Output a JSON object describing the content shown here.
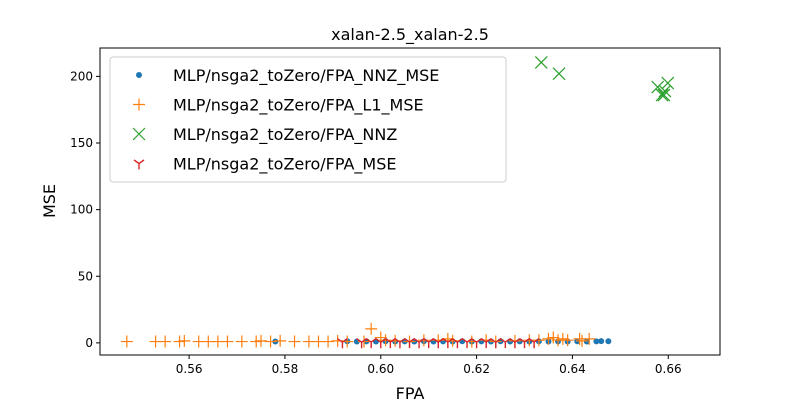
{
  "chart_data": {
    "type": "scatter",
    "title": "xalan-2.5_xalan-2.5",
    "xlabel": "FPA",
    "ylabel": "MSE",
    "xlim": [
      0.5414,
      0.6708
    ],
    "ylim": [
      -9.1,
      221.3
    ],
    "xticks": [
      {
        "value": 0.56,
        "label": "0.56"
      },
      {
        "value": 0.58,
        "label": "0.58"
      },
      {
        "value": 0.6,
        "label": "0.60"
      },
      {
        "value": 0.62,
        "label": "0.62"
      },
      {
        "value": 0.64,
        "label": "0.64"
      },
      {
        "value": 0.66,
        "label": "0.66"
      }
    ],
    "yticks": [
      {
        "value": 0,
        "label": "0"
      },
      {
        "value": 50,
        "label": "50"
      },
      {
        "value": 100,
        "label": "100"
      },
      {
        "value": 150,
        "label": "150"
      },
      {
        "value": 200,
        "label": "200"
      }
    ],
    "grid": false,
    "legend_position": "upper-left",
    "series": [
      {
        "name": "MLP/nsga2_toZero/FPA_NNZ_MSE",
        "marker": "dot",
        "color": "#1f77b4",
        "x": [
          0.578,
          0.593,
          0.595,
          0.597,
          0.599,
          0.601,
          0.603,
          0.605,
          0.607,
          0.609,
          0.611,
          0.613,
          0.615,
          0.617,
          0.619,
          0.621,
          0.623,
          0.625,
          0.627,
          0.629,
          0.631,
          0.633,
          0.635,
          0.637,
          0.639,
          0.641,
          0.643,
          0.645,
          0.646,
          0.6475
        ],
        "y": [
          1,
          1.2,
          1,
          1.1,
          1,
          1.2,
          1,
          1.1,
          1,
          1.2,
          1,
          1.1,
          1,
          1.2,
          1,
          1.1,
          1,
          1.2,
          1,
          1.1,
          1,
          1.2,
          1,
          1.1,
          1,
          1.2,
          1,
          1.1,
          1.3,
          1.2
        ]
      },
      {
        "name": "MLP/nsga2_toZero/FPA_L1_MSE",
        "marker": "plus",
        "color": "#ff7f0e",
        "x": [
          0.547,
          0.553,
          0.555,
          0.558,
          0.559,
          0.562,
          0.564,
          0.566,
          0.568,
          0.571,
          0.574,
          0.575,
          0.577,
          0.579,
          0.582,
          0.585,
          0.587,
          0.589,
          0.591,
          0.593,
          0.5965,
          0.598,
          0.6,
          0.601,
          0.603,
          0.606,
          0.609,
          0.612,
          0.614,
          0.615,
          0.619,
          0.622,
          0.624,
          0.628,
          0.631,
          0.633,
          0.635,
          0.636,
          0.637,
          0.638,
          0.639,
          0.6415,
          0.642,
          0.6435
        ],
        "y": [
          1,
          1,
          1,
          1,
          1.5,
          1,
          1,
          1,
          1,
          1,
          1,
          1.5,
          1,
          1.5,
          1,
          1,
          1,
          1,
          1.5,
          1,
          1,
          10.5,
          4,
          2,
          1.5,
          1,
          2,
          2,
          3,
          1.5,
          1,
          2,
          1,
          1.5,
          2,
          2,
          3,
          4,
          2,
          3,
          2,
          3,
          1.5,
          3
        ]
      },
      {
        "name": "MLP/nsga2_toZero/FPA_NNZ",
        "marker": "x",
        "color": "#2ca02c",
        "x": [
          0.6335,
          0.6372,
          0.6578,
          0.6587,
          0.6593,
          0.6591,
          0.6599
        ],
        "y": [
          210.5,
          202,
          192,
          186,
          189,
          186,
          195
        ]
      },
      {
        "name": "MLP/nsga2_toZero/FPA_MSE",
        "marker": "tri_down",
        "color": "#d62728",
        "x": [
          0.592,
          0.596,
          0.598,
          0.6,
          0.602,
          0.604,
          0.606,
          0.608,
          0.61,
          0.612,
          0.614,
          0.616,
          0.618,
          0.62,
          0.622,
          0.624,
          0.626,
          0.628,
          0.63,
          0.632
        ],
        "y": [
          0.5,
          0.5,
          0.6,
          0.5,
          0.6,
          0.5,
          0.6,
          0.5,
          0.6,
          0.5,
          0.6,
          0.5,
          0.6,
          0.5,
          0.6,
          0.5,
          0.6,
          0.5,
          0.6,
          0.5
        ]
      }
    ]
  }
}
